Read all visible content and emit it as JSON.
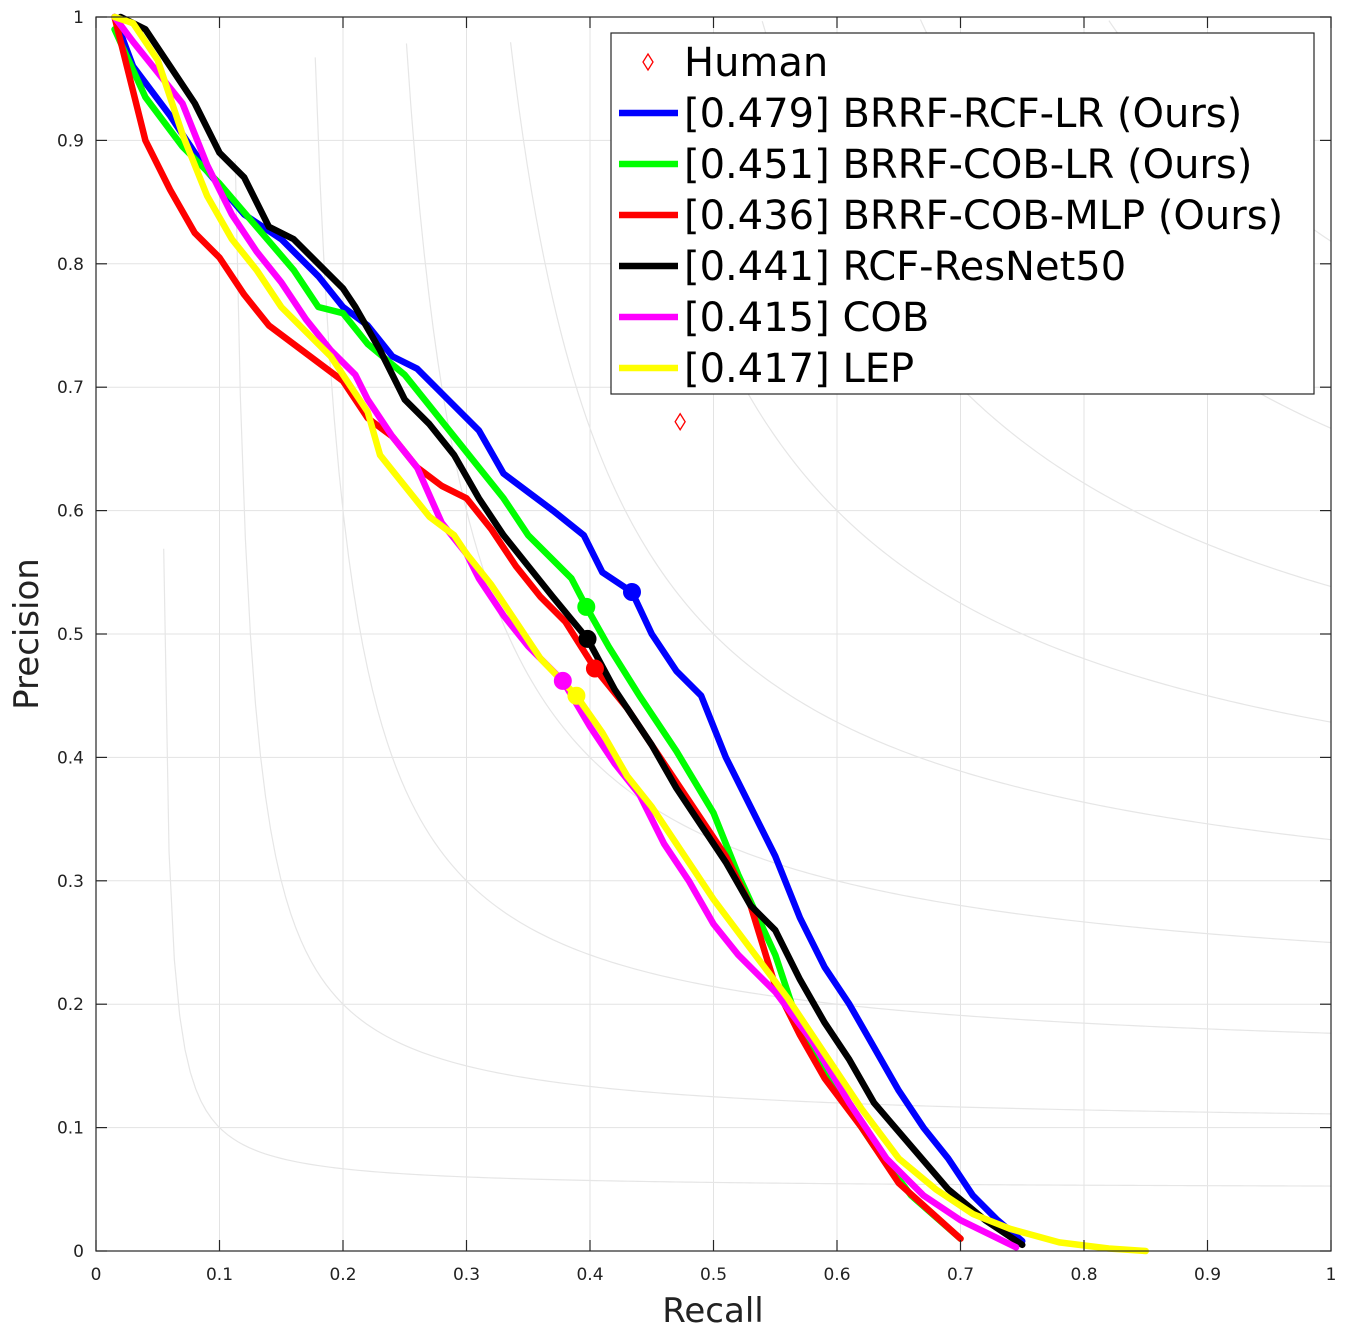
{
  "chart_data": {
    "type": "line",
    "xlabel": "Recall",
    "ylabel": "Precision",
    "xlim": [
      0,
      1
    ],
    "ylim": [
      0,
      1
    ],
    "grid": true,
    "legend_position": "top-right",
    "xticks": [
      "0",
      "0.1",
      "0.2",
      "0.3",
      "0.4",
      "0.5",
      "0.6",
      "0.7",
      "0.8",
      "0.9",
      "1"
    ],
    "yticks": [
      "0",
      "0.1",
      "0.2",
      "0.3",
      "0.4",
      "0.5",
      "0.6",
      "0.7",
      "0.8",
      "0.9",
      "1"
    ],
    "iso_f_levels": [
      0.1,
      0.2,
      0.3,
      0.4,
      0.5,
      0.6,
      0.7,
      0.8,
      0.9
    ],
    "human": {
      "label": "Human",
      "recall": 0.473,
      "precision": 0.672,
      "color": "#ff0000"
    },
    "series": [
      {
        "name": "[0.479] BRRF-RCF-LR (Ours)",
        "color": "#0000ff",
        "marker": [
          0.434,
          0.534
        ],
        "points": [
          [
            0.015,
            1.0
          ],
          [
            0.03,
            0.96
          ],
          [
            0.06,
            0.92
          ],
          [
            0.09,
            0.875
          ],
          [
            0.12,
            0.84
          ],
          [
            0.15,
            0.82
          ],
          [
            0.18,
            0.79
          ],
          [
            0.2,
            0.765
          ],
          [
            0.22,
            0.75
          ],
          [
            0.24,
            0.725
          ],
          [
            0.26,
            0.715
          ],
          [
            0.28,
            0.695
          ],
          [
            0.31,
            0.665
          ],
          [
            0.33,
            0.63
          ],
          [
            0.35,
            0.615
          ],
          [
            0.37,
            0.6
          ],
          [
            0.395,
            0.58
          ],
          [
            0.41,
            0.55
          ],
          [
            0.434,
            0.534
          ],
          [
            0.45,
            0.5
          ],
          [
            0.47,
            0.47
          ],
          [
            0.49,
            0.45
          ],
          [
            0.51,
            0.4
          ],
          [
            0.53,
            0.36
          ],
          [
            0.55,
            0.32
          ],
          [
            0.57,
            0.27
          ],
          [
            0.59,
            0.23
          ],
          [
            0.61,
            0.2
          ],
          [
            0.63,
            0.165
          ],
          [
            0.65,
            0.13
          ],
          [
            0.67,
            0.1
          ],
          [
            0.69,
            0.075
          ],
          [
            0.71,
            0.045
          ],
          [
            0.73,
            0.025
          ],
          [
            0.75,
            0.008
          ]
        ]
      },
      {
        "name": "[0.451] BRRF-COB-LR (Ours)",
        "color": "#00ff00",
        "marker": [
          0.397,
          0.522
        ],
        "points": [
          [
            0.015,
            0.99
          ],
          [
            0.04,
            0.935
          ],
          [
            0.07,
            0.895
          ],
          [
            0.1,
            0.865
          ],
          [
            0.13,
            0.83
          ],
          [
            0.16,
            0.795
          ],
          [
            0.18,
            0.765
          ],
          [
            0.2,
            0.76
          ],
          [
            0.22,
            0.735
          ],
          [
            0.25,
            0.71
          ],
          [
            0.27,
            0.685
          ],
          [
            0.29,
            0.66
          ],
          [
            0.31,
            0.635
          ],
          [
            0.33,
            0.61
          ],
          [
            0.35,
            0.58
          ],
          [
            0.37,
            0.56
          ],
          [
            0.385,
            0.545
          ],
          [
            0.397,
            0.522
          ],
          [
            0.415,
            0.49
          ],
          [
            0.44,
            0.45
          ],
          [
            0.47,
            0.405
          ],
          [
            0.5,
            0.355
          ],
          [
            0.52,
            0.305
          ],
          [
            0.55,
            0.24
          ],
          [
            0.57,
            0.18
          ],
          [
            0.6,
            0.13
          ],
          [
            0.63,
            0.085
          ],
          [
            0.66,
            0.045
          ],
          [
            0.7,
            0.01
          ]
        ]
      },
      {
        "name": "[0.436] BRRF-COB-MLP (Ours)",
        "color": "#ff0000",
        "marker": [
          0.404,
          0.472
        ],
        "points": [
          [
            0.015,
            1.0
          ],
          [
            0.025,
            0.96
          ],
          [
            0.04,
            0.9
          ],
          [
            0.06,
            0.86
          ],
          [
            0.08,
            0.825
          ],
          [
            0.1,
            0.805
          ],
          [
            0.12,
            0.775
          ],
          [
            0.14,
            0.75
          ],
          [
            0.16,
            0.735
          ],
          [
            0.18,
            0.72
          ],
          [
            0.2,
            0.705
          ],
          [
            0.22,
            0.675
          ],
          [
            0.24,
            0.66
          ],
          [
            0.26,
            0.635
          ],
          [
            0.28,
            0.62
          ],
          [
            0.3,
            0.61
          ],
          [
            0.32,
            0.585
          ],
          [
            0.34,
            0.555
          ],
          [
            0.36,
            0.53
          ],
          [
            0.38,
            0.51
          ],
          [
            0.404,
            0.472
          ],
          [
            0.43,
            0.44
          ],
          [
            0.46,
            0.395
          ],
          [
            0.49,
            0.35
          ],
          [
            0.51,
            0.32
          ],
          [
            0.53,
            0.28
          ],
          [
            0.55,
            0.215
          ],
          [
            0.57,
            0.175
          ],
          [
            0.59,
            0.14
          ],
          [
            0.62,
            0.1
          ],
          [
            0.65,
            0.055
          ],
          [
            0.68,
            0.028
          ],
          [
            0.7,
            0.01
          ]
        ]
      },
      {
        "name": "[0.441] RCF-ResNet50",
        "color": "#000000",
        "marker": [
          0.398,
          0.496
        ],
        "points": [
          [
            0.02,
            1.0
          ],
          [
            0.04,
            0.99
          ],
          [
            0.06,
            0.96
          ],
          [
            0.08,
            0.93
          ],
          [
            0.1,
            0.89
          ],
          [
            0.12,
            0.87
          ],
          [
            0.14,
            0.83
          ],
          [
            0.16,
            0.82
          ],
          [
            0.18,
            0.8
          ],
          [
            0.2,
            0.78
          ],
          [
            0.21,
            0.765
          ],
          [
            0.23,
            0.73
          ],
          [
            0.25,
            0.69
          ],
          [
            0.27,
            0.67
          ],
          [
            0.29,
            0.645
          ],
          [
            0.31,
            0.61
          ],
          [
            0.33,
            0.58
          ],
          [
            0.35,
            0.555
          ],
          [
            0.37,
            0.53
          ],
          [
            0.398,
            0.496
          ],
          [
            0.42,
            0.455
          ],
          [
            0.45,
            0.41
          ],
          [
            0.47,
            0.375
          ],
          [
            0.49,
            0.345
          ],
          [
            0.51,
            0.315
          ],
          [
            0.53,
            0.28
          ],
          [
            0.55,
            0.26
          ],
          [
            0.57,
            0.22
          ],
          [
            0.59,
            0.185
          ],
          [
            0.61,
            0.155
          ],
          [
            0.63,
            0.12
          ],
          [
            0.66,
            0.085
          ],
          [
            0.69,
            0.05
          ],
          [
            0.72,
            0.025
          ],
          [
            0.75,
            0.005
          ]
        ]
      },
      {
        "name": "[0.415] COB",
        "color": "#ff00ff",
        "marker": [
          0.378,
          0.462
        ],
        "points": [
          [
            0.015,
            1.0
          ],
          [
            0.03,
            0.98
          ],
          [
            0.05,
            0.955
          ],
          [
            0.07,
            0.93
          ],
          [
            0.09,
            0.88
          ],
          [
            0.11,
            0.84
          ],
          [
            0.13,
            0.81
          ],
          [
            0.15,
            0.785
          ],
          [
            0.17,
            0.755
          ],
          [
            0.19,
            0.73
          ],
          [
            0.21,
            0.71
          ],
          [
            0.22,
            0.69
          ],
          [
            0.24,
            0.66
          ],
          [
            0.26,
            0.635
          ],
          [
            0.28,
            0.59
          ],
          [
            0.3,
            0.565
          ],
          [
            0.31,
            0.545
          ],
          [
            0.33,
            0.515
          ],
          [
            0.35,
            0.49
          ],
          [
            0.378,
            0.462
          ],
          [
            0.4,
            0.425
          ],
          [
            0.42,
            0.395
          ],
          [
            0.44,
            0.37
          ],
          [
            0.46,
            0.33
          ],
          [
            0.48,
            0.3
          ],
          [
            0.5,
            0.265
          ],
          [
            0.52,
            0.24
          ],
          [
            0.55,
            0.21
          ],
          [
            0.58,
            0.17
          ],
          [
            0.61,
            0.12
          ],
          [
            0.64,
            0.075
          ],
          [
            0.67,
            0.045
          ],
          [
            0.7,
            0.025
          ],
          [
            0.745,
            0.003
          ]
        ]
      },
      {
        "name": "[0.417] LEP",
        "color": "#ffff00",
        "marker": [
          0.389,
          0.45
        ],
        "points": [
          [
            0.015,
            1.0
          ],
          [
            0.03,
            0.995
          ],
          [
            0.05,
            0.965
          ],
          [
            0.07,
            0.905
          ],
          [
            0.09,
            0.855
          ],
          [
            0.11,
            0.82
          ],
          [
            0.13,
            0.795
          ],
          [
            0.15,
            0.765
          ],
          [
            0.17,
            0.745
          ],
          [
            0.19,
            0.725
          ],
          [
            0.2,
            0.71
          ],
          [
            0.22,
            0.68
          ],
          [
            0.23,
            0.645
          ],
          [
            0.25,
            0.62
          ],
          [
            0.27,
            0.595
          ],
          [
            0.29,
            0.58
          ],
          [
            0.3,
            0.565
          ],
          [
            0.32,
            0.54
          ],
          [
            0.34,
            0.51
          ],
          [
            0.36,
            0.48
          ],
          [
            0.389,
            0.45
          ],
          [
            0.41,
            0.42
          ],
          [
            0.43,
            0.385
          ],
          [
            0.45,
            0.36
          ],
          [
            0.47,
            0.33
          ],
          [
            0.5,
            0.285
          ],
          [
            0.53,
            0.245
          ],
          [
            0.56,
            0.205
          ],
          [
            0.59,
            0.16
          ],
          [
            0.62,
            0.115
          ],
          [
            0.65,
            0.075
          ],
          [
            0.68,
            0.05
          ],
          [
            0.71,
            0.03
          ],
          [
            0.74,
            0.018
          ],
          [
            0.78,
            0.007
          ],
          [
            0.82,
            0.002
          ],
          [
            0.85,
            0.0
          ]
        ]
      }
    ]
  }
}
